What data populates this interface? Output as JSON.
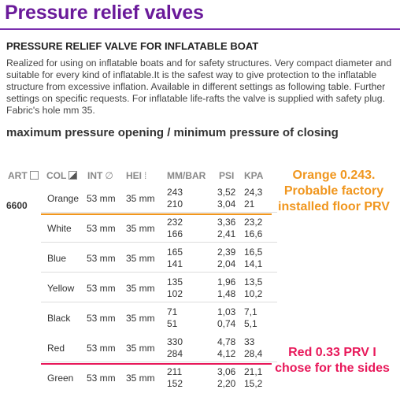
{
  "title": "Pressure relief valves",
  "subtitle": "PRESSURE RELIEF VALVE FOR INFLATABLE BOAT",
  "description": "Realized for using on inflatable boats and for safety structures. Very compact diameter and suitable for every kind of inflatable.It is the safest way to give protection to the inflatable structure from excessive inflation. Available in different settings as following table. Further settings on specific requests. For inflatable life-rafts the valve is supplied with safety plug. Fabric's hole mm 35.",
  "heading": "maximum pressure opening / minimum pressure of closing",
  "table": {
    "headers": {
      "art": "ART",
      "col": "COL",
      "int": "INT",
      "int_symbol": "∅",
      "hei": "HEI",
      "mmbar": "MM/BAR",
      "psi": "PSI",
      "kpa": "KPA"
    },
    "article": "6600",
    "rows": [
      {
        "col": "Orange",
        "int": "53 mm",
        "hei": "35 mm",
        "mmbar_open": "243",
        "mmbar_close": "210",
        "psi_open": "3,52",
        "psi_close": "3,04",
        "kpa_open": "24,3",
        "kpa_close": "21"
      },
      {
        "col": "White",
        "int": "53 mm",
        "hei": "35 mm",
        "mmbar_open": "232",
        "mmbar_close": "166",
        "psi_open": "3,36",
        "psi_close": "2,41",
        "kpa_open": "23,2",
        "kpa_close": "16,6"
      },
      {
        "col": "Blue",
        "int": "53 mm",
        "hei": "35 mm",
        "mmbar_open": "165",
        "mmbar_close": "141",
        "psi_open": "2,39",
        "psi_close": "2,04",
        "kpa_open": "16,5",
        "kpa_close": "14,1"
      },
      {
        "col": "Yellow",
        "int": "53 mm",
        "hei": "35 mm",
        "mmbar_open": "135",
        "mmbar_close": "102",
        "psi_open": "1,96",
        "psi_close": "1,48",
        "kpa_open": "13,5",
        "kpa_close": "10,2"
      },
      {
        "col": "Black",
        "int": "53 mm",
        "hei": "35 mm",
        "mmbar_open": "71",
        "mmbar_close": "51",
        "psi_open": "1,03",
        "psi_close": "0,74",
        "kpa_open": "7,1",
        "kpa_close": "5,1"
      },
      {
        "col": "Red",
        "int": "53 mm",
        "hei": "35 mm",
        "mmbar_open": "330",
        "mmbar_close": "284",
        "psi_open": "4,78",
        "psi_close": "4,12",
        "kpa_open": "33",
        "kpa_close": "28,4"
      },
      {
        "col": "Green",
        "int": "53 mm",
        "hei": "35 mm",
        "mmbar_open": "211",
        "mmbar_close": "152",
        "psi_open": "3,06",
        "psi_close": "2,20",
        "kpa_open": "21,1",
        "kpa_close": "15,2"
      }
    ]
  },
  "annotations": {
    "orange": {
      "lines": [
        "Orange 0.243.",
        "Probable factory",
        "installed floor PRV"
      ],
      "color": "#f0961e"
    },
    "red": {
      "lines": [
        "Red 0.33 PRV I",
        "chose for the sides"
      ],
      "color": "#e8185a"
    }
  },
  "colors": {
    "title": "#6a1a9a",
    "rule": "#7a2fae"
  }
}
